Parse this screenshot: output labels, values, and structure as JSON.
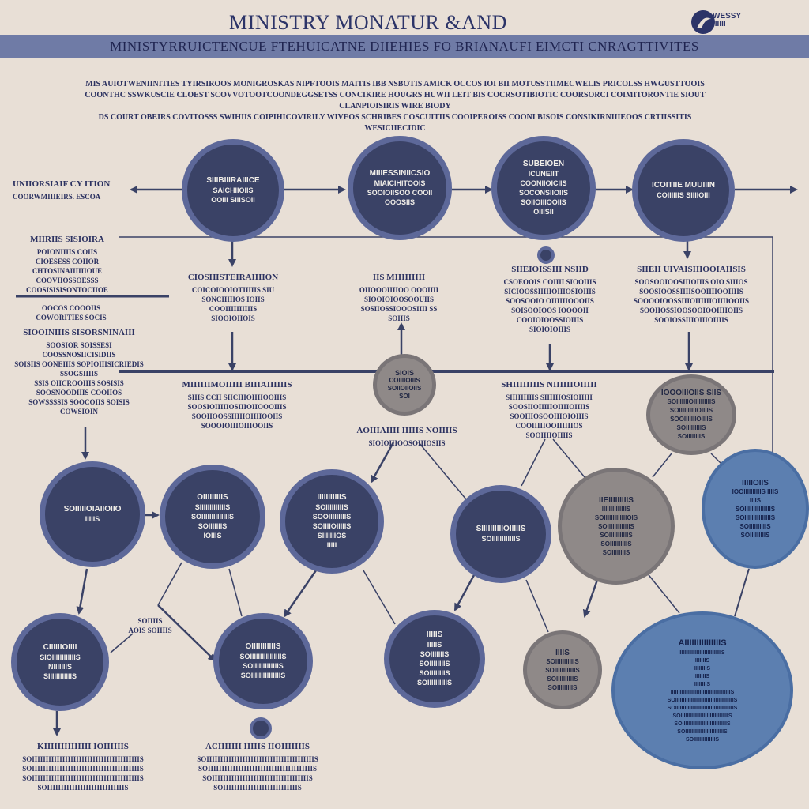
{
  "header": {
    "title": "MINISTRY  MONATUR  &AND",
    "logo_text": "WESSY\nIIIIII",
    "banner": "MINISTYRRUICTENCUE  FTEHUICATNE DIIEHIES FO  BRIANAUFI EIMCTI CNRAGTTIVITES"
  },
  "intro": [
    "MIS  AUIOTWENIINITIES  TYIRSIROOS  MONIGROSKAS  NIPFTOOIS  MAITIS IBB  NSBOTIS AMICK  OCCOS  IOI  BII  MOTUSSTIIMECWELIS  PRICOLSS  HWGUSTTOOIS",
    "COONTHC  SSWKUSCIE  CLOEST SCOVVOTOOTCOONDEGGSETSS CONCIKIRE  HOUGRS  HUWII  LEIT  BIS  COCRSOTIBIOTIC  COORSORCI  COIMITORONTIE  SIOUT  CLANPIOISIRIS  WIRE BIODY",
    "DS  COURT OBEIRS COVITOSSS SWIHIIS  COIPIHICOVIRILY WIVEOS  SCHRIBES COSCUITIIS COOIPEROISS  COONI  BISOIS  CONSIKIRNIIIEOOS  CRTIISSITIS",
    "WESICIIECIDIC"
  ],
  "side_left": {
    "top_heading": "UNIIORSIAIF  CY ITION",
    "top_sub": "COORWMIIIEIRS. ESCOA",
    "mid_heading": "MIIRIIS  SISIOIRA",
    "mid_lines": [
      "POIONIIIIS  COIIS",
      "CIOESESS  COIIOR",
      "CHTOSINAIIIIIIOUE",
      "COOVIIOSSOESSS",
      "COOSISISISONTOCIIOE"
    ],
    "lower_lines": [
      "OOCOS  COOOIIS",
      "COWORITIES  SOCIS"
    ],
    "block_heading": "SIOOINIIIS SISORSNINAIII",
    "block_lines": [
      "SOOSIOR  SOISSESI",
      "COOSSNOSIICISIDIIS",
      "SOISIIS  OONEIIIS  SOPIOIIISICRIEDIS",
      "SSOGSIIIIS",
      "SSIS  OIICROOIIIS  SOSISIS",
      "SOOSNOODIIIS  COOIIOS",
      "SOWSSSSIS  SOOCOIIS  SOISIS",
      "COWSIOIN"
    ]
  },
  "row1_nodes": [
    {
      "title": "SIIIBIIIRAIIICE",
      "lines": [
        "SAICHIIOIIS",
        "OOIII  SIIISOII"
      ]
    },
    {
      "title": "MIIIESSINIICSIO",
      "lines": [
        "MIAICIHITOOIS",
        "SOOIOIISOO  COOII",
        "OOOSIIS"
      ]
    },
    {
      "title": "SUBEIOEN",
      "lines": [
        "ICUNEIIT",
        "COONIIOICIIS",
        "SOCONSIIOIIS",
        "SOIIOIIIOOIIS",
        "OIIISII"
      ]
    },
    {
      "title": "ICOITIIE  MUUIIIN",
      "lines": [
        "COIIIIIIS  SIIIIOIII"
      ]
    }
  ],
  "row1_labels": [
    {
      "heading": "CIOSHISTEIRAIIIION",
      "lines": [
        "COICOIOOIOTIIIIIS  SIU",
        "SONCIIIIIOS  IOIIS",
        "COOIIIIIIIIIIS",
        "SIOOIOIIOIS"
      ]
    },
    {
      "heading": "IIS  MIIIIIIIII",
      "lines": [
        "OIIOOOIIIIOO  OOOIIII",
        "SIOOIOIOOSOOUIIS",
        "SOSIIOSSIOOOSIIII  SS",
        "SOIIIS"
      ]
    },
    {
      "heading": "SIIEIOISSIII  NSIID",
      "lines": [
        "CSOEOOIS  COIIII  SIOOIIIS",
        "SICIOOSSIIIIIOIIIOSIOIIIS",
        "SOOSOOIO  OIIIIIIOOOIIS",
        "SOISOOIOOS  IOOOOII",
        "COOIOIOOSSIOIIIS",
        "SIOIOIOIIIS"
      ]
    },
    {
      "heading": "SIIEII  UIVAISIIIOOIAIISIS",
      "lines": [
        "SOOSOOIOOSIIIOIIIS  OIO  SIIIOS",
        "SOOSIOOSSIIIISOOIIIIOOIIIIS",
        "SOOOOIOOSSIIIOIIIIIIOIIIIOOIIS",
        "SOOIIOSSIOOSOOIOOIIIIOIIS",
        "SOOIOSSIIIOIIIOIIIIS"
      ]
    }
  ],
  "mid_labels": [
    {
      "heading": "MIIIIIIMOIIIII  BIIIAIIIIIIS",
      "lines": [
        "SIIIS  CCII  SIICIIIOIIIIOOIIIS",
        "SOOSIOIIIIIOSIIIOIIOOOIIIS",
        "SOOIIOOSSIIIIIOIIIIOOIIS",
        "SOOOIOIIIOIIIOOIIS"
      ]
    },
    {
      "heading": "AOIIIAIIII  IIIIIS  NOIIIIS",
      "lines": [
        "SIOIOIIIOOSOIIIOSIIS"
      ]
    },
    {
      "heading": "SHIIIIIIIIS  NIIIIIIOIIIII",
      "lines": [
        "SIIIIIIIIIS  SIIIIIIOSIOIIIII",
        "SOOSIIOIIIIIOIIIIOIIIIS",
        "SOOIIIOSOOIIIOIOIIIS",
        "COOIIIIIOOIIIIIIOS",
        "SOOIIIIOIIIIS"
      ]
    }
  ],
  "mid_grey_node": {
    "title": "SIOIS",
    "lines": [
      "COIIIIOIIIS",
      "SOIIOIIOIIS",
      "SOI"
    ]
  },
  "right_grey_node": {
    "title": "IOOOIIIOIIS  SIIS",
    "lines": [
      "SOIIIIIIIOIIIIIIIIIIS",
      "SOIIIIIIIIIIOIIIIS",
      "SOOIIIIIIIOIIIIS",
      "SOIIIIIIIIIS",
      "SOIIIIIIIIS"
    ]
  },
  "row2_nodes": [
    {
      "title": "SOIIIIIOIAIIOIIO",
      "lines": [
        "IIIIIS"
      ],
      "style": "dark"
    },
    {
      "title": "OIIIIIIIIIS",
      "lines": [
        "SIIIIIIIIIIIIIS",
        "SOIIIIIIIIIIIIIIS",
        "SOIIIIIIIS",
        "IOIIIS"
      ],
      "style": "dark"
    },
    {
      "title": "IIIIIIIIIIIS",
      "lines": [
        "SOIIIIIIIIIS",
        "SOOIIIIIIIIIS",
        "SOIIIIOIIIIIS",
        "SIIIIIIIOS",
        "IIIII"
      ],
      "style": "dark"
    },
    {
      "title": "SIIIIIIIIIIOIIIIIS",
      "lines": [
        "SOIIIIIIIIIIIIS"
      ],
      "style": "dark"
    },
    {
      "title": "IIEIIIIIIIIIS",
      "lines": [
        "IIIIIIIIIIIIIIS",
        "SOIIIIIIIIIIIIIOIS",
        "SOIIIIIIIIIIIIIS",
        "SOIIIIIIIIIIIS",
        "SOIIIIIIIIIIS",
        "SOIIIIIIIIS"
      ],
      "style": "grey"
    },
    {
      "title": "IIIIIOIIS",
      "lines": [
        "IOOIIIIIIIIIIS  IIIIS",
        "IIIIS",
        "SOIIIIIIIIIIIIIIIS",
        "SOIIIIIIIIIIIIIIIS",
        "SOIIIIIIIIIIS",
        "SOIIIIIIIIIS"
      ],
      "style": "blue"
    }
  ],
  "row3_nodes": [
    {
      "title": "CIIIIIIOIIII",
      "lines": [
        "SIOIIIIIIIIIIIIS",
        "NIIIIIIIS",
        "SIIIIIIIIIIIIS"
      ],
      "style": "dark"
    },
    {
      "title": "OIIIIIIIIIIIS",
      "lines": [
        "SOIIIIIIIIIIIIIIIIS",
        "SOIIIIIIIIIIIIIS",
        "SOIIIIIIIIIIIIIIIS"
      ],
      "style": "dark"
    },
    {
      "title": "IIIIIS",
      "lines": [
        "IIIIIS",
        "SOIIIIIIIS",
        "SOIIIIIIIIS",
        "SOIIIIIIIIS",
        "SOIIIIIIIIIIS"
      ],
      "style": "dark"
    },
    {
      "title": "IIIIS",
      "lines": [
        "SOIIIIIIIIIIIS",
        "SOIIIIIIIIIIIIS",
        "SOIIIIIIIIIIS",
        "SOIIIIIIIIIS"
      ],
      "style": "grey"
    },
    {
      "title": "AIIIIIIIIIIIIIIIS",
      "lines": [
        "IIIIIIIIIIIIIIIIIIIIIIIIIIIS",
        "IIIIIIIS",
        "IIIIIIIIS",
        "IIIIIIIS",
        "IIIIIIIIS",
        "IIIIIIIIIIIIIIIIIIIIIIIIIIIIIIIIIIIIIIIS",
        "SOIIIIIIIIIIIIIIIIIIIIIIIIIIIIIIIIIIIIIIS",
        "SOIIIIIIIIIIIIIIIIIIIIIIIIIIIIIIIIIIIIIIS",
        "SOIIIIIIIIIIIIIIIIIIIIIIIIIIIIIIIS",
        "SOIIIIIIIIIIIIIIIIIIIIIIIIIIIIIS",
        "SOIIIIIIIIIIIIIIIIIIIIIIIIIS",
        "SOIIIIIIIIIIIIIIS"
      ],
      "style": "blue"
    }
  ],
  "small_label": {
    "lines": [
      "SOIIIIS",
      "AOIS  SOIIIIS"
    ]
  },
  "bottom_labels": [
    {
      "heading": "KIIIIIIIIIIIIII  IOIIIIIIS",
      "lines": [
        "SOIIIIIIIIIIIIIIIIIIIIIIIIIIIIIIIIIIIIIIIS",
        "SOIIIIIIIIIIIIIIIIIIIIIIIIIIIIIIIIIIIIIIIS",
        "SOIIIIIIIIIIIIIIIIIIIIIIIIIIIIIIIIIIIIIIIS",
        "SOIIIIIIIIIIIIIIIIIIIIIIIIIIIIS"
      ]
    },
    {
      "heading": "ACIIIIIII  IIIIIS  IIOIIIIIIIS",
      "lines": [
        "SOIIIIIIIIIIIIIIIIIIIIIIIIIIIIIIIIIIIIIIIS",
        "SOIIIIIIIIIIIIIIIIIIIIIIIIIIIIIIIIIIIIIIS",
        "SOIIIIIIIIIIIIIIIIIIIIIIIIIIIIIIIIIIIS",
        "SOIIIIIIIIIIIIIIIIIIIIIIIIIIIS"
      ]
    }
  ],
  "colors": {
    "background": "#e8dfd6",
    "dark_node": "#3a4266",
    "dark_ring": "#5d6899",
    "grey_node": "#8f8988",
    "blue_node": "#5c7fb0",
    "line": "#3a4266"
  }
}
